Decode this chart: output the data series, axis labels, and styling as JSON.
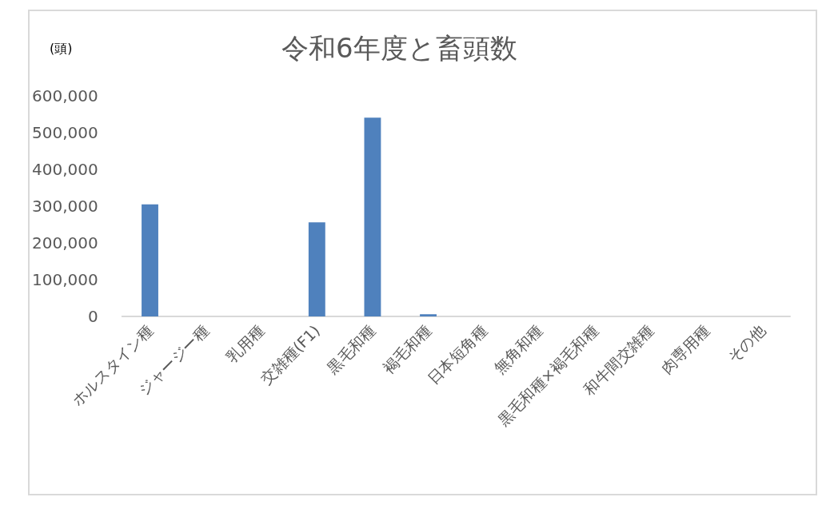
{
  "chart_data": {
    "type": "bar",
    "title": "令和6年度と畜頭数",
    "ylabel": "(頭)",
    "categories": [
      "ホルスタイン種",
      "ジャージー種",
      "乳用種",
      "交雑種(F1)",
      "黒毛和種",
      "褐毛和種",
      "日本短角種",
      "無角和種",
      "黒毛和種×褐毛和種",
      "和牛間交雑種",
      "肉専用種",
      "その他"
    ],
    "values": [
      305000,
      0,
      0,
      256000,
      541000,
      6000,
      0,
      0,
      0,
      0,
      0,
      0
    ],
    "color": "#4f81bd",
    "ylim": [
      0,
      600000
    ],
    "yticks": [
      {
        "value": 0,
        "label": "0"
      },
      {
        "value": 100000,
        "label": "100,000"
      },
      {
        "value": 200000,
        "label": "200,000"
      },
      {
        "value": 300000,
        "label": "300,000"
      },
      {
        "value": 400000,
        "label": "400,000"
      },
      {
        "value": 500000,
        "label": "500,000"
      },
      {
        "value": 600000,
        "label": "600,000"
      }
    ]
  }
}
